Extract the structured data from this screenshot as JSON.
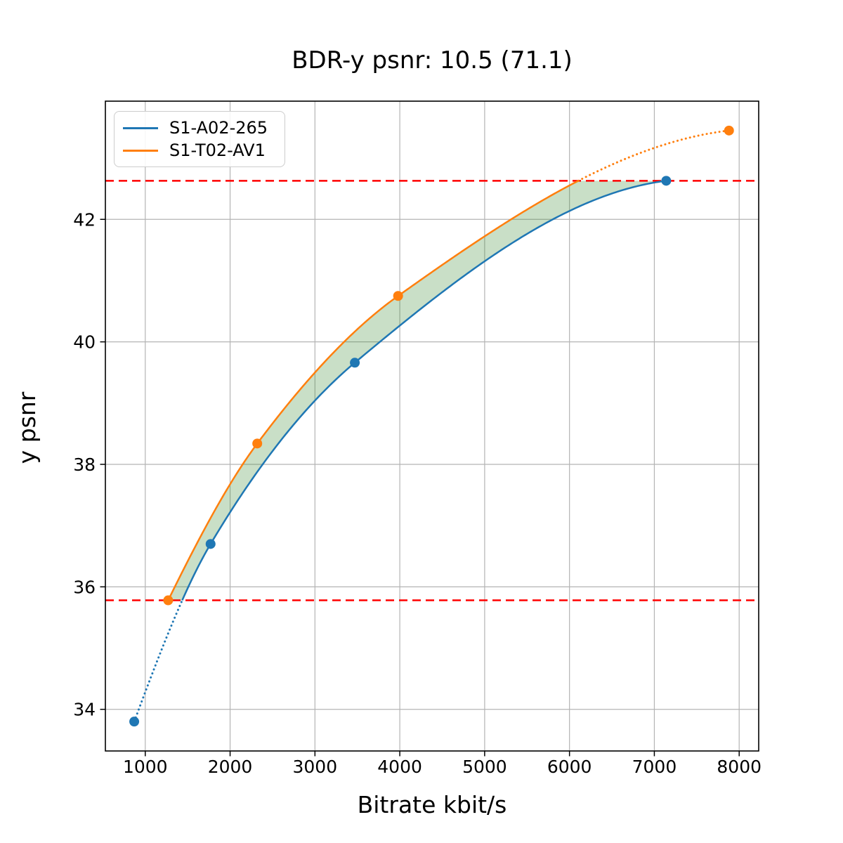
{
  "chart_data": {
    "type": "line",
    "title": "BDR-y psnr: 10.5 (71.1)",
    "xlabel": "Bitrate kbit/s",
    "ylabel": "y psnr",
    "xlim": [
      530,
      8230
    ],
    "ylim": [
      33.32,
      43.93
    ],
    "x_ticks": [
      1000,
      2000,
      3000,
      4000,
      5000,
      6000,
      7000,
      8000
    ],
    "y_ticks": [
      34,
      36,
      38,
      40,
      42
    ],
    "grid": true,
    "legend_position": "upper-left",
    "series": [
      {
        "name": "S1-A02-265",
        "color": "#1f77b4",
        "marker": "circle",
        "points": [
          [
            870,
            33.8
          ],
          [
            1770,
            36.7
          ],
          [
            3470,
            39.66
          ],
          [
            7140,
            42.63
          ]
        ]
      },
      {
        "name": "S1-T02-AV1",
        "color": "#ff7f0e",
        "marker": "circle",
        "points": [
          [
            1270,
            35.78
          ],
          [
            2320,
            38.34
          ],
          [
            3980,
            40.75
          ],
          [
            7880,
            43.45
          ]
        ]
      }
    ],
    "bd_interval_lines": {
      "values": [
        35.78,
        42.63
      ],
      "color": "#ff0000",
      "style": "dashed"
    },
    "fill_between": {
      "upper_series": "S1-T02-AV1",
      "lower_series": "S1-A02-265",
      "color": "#3c8c37",
      "opacity": 0.28
    }
  }
}
